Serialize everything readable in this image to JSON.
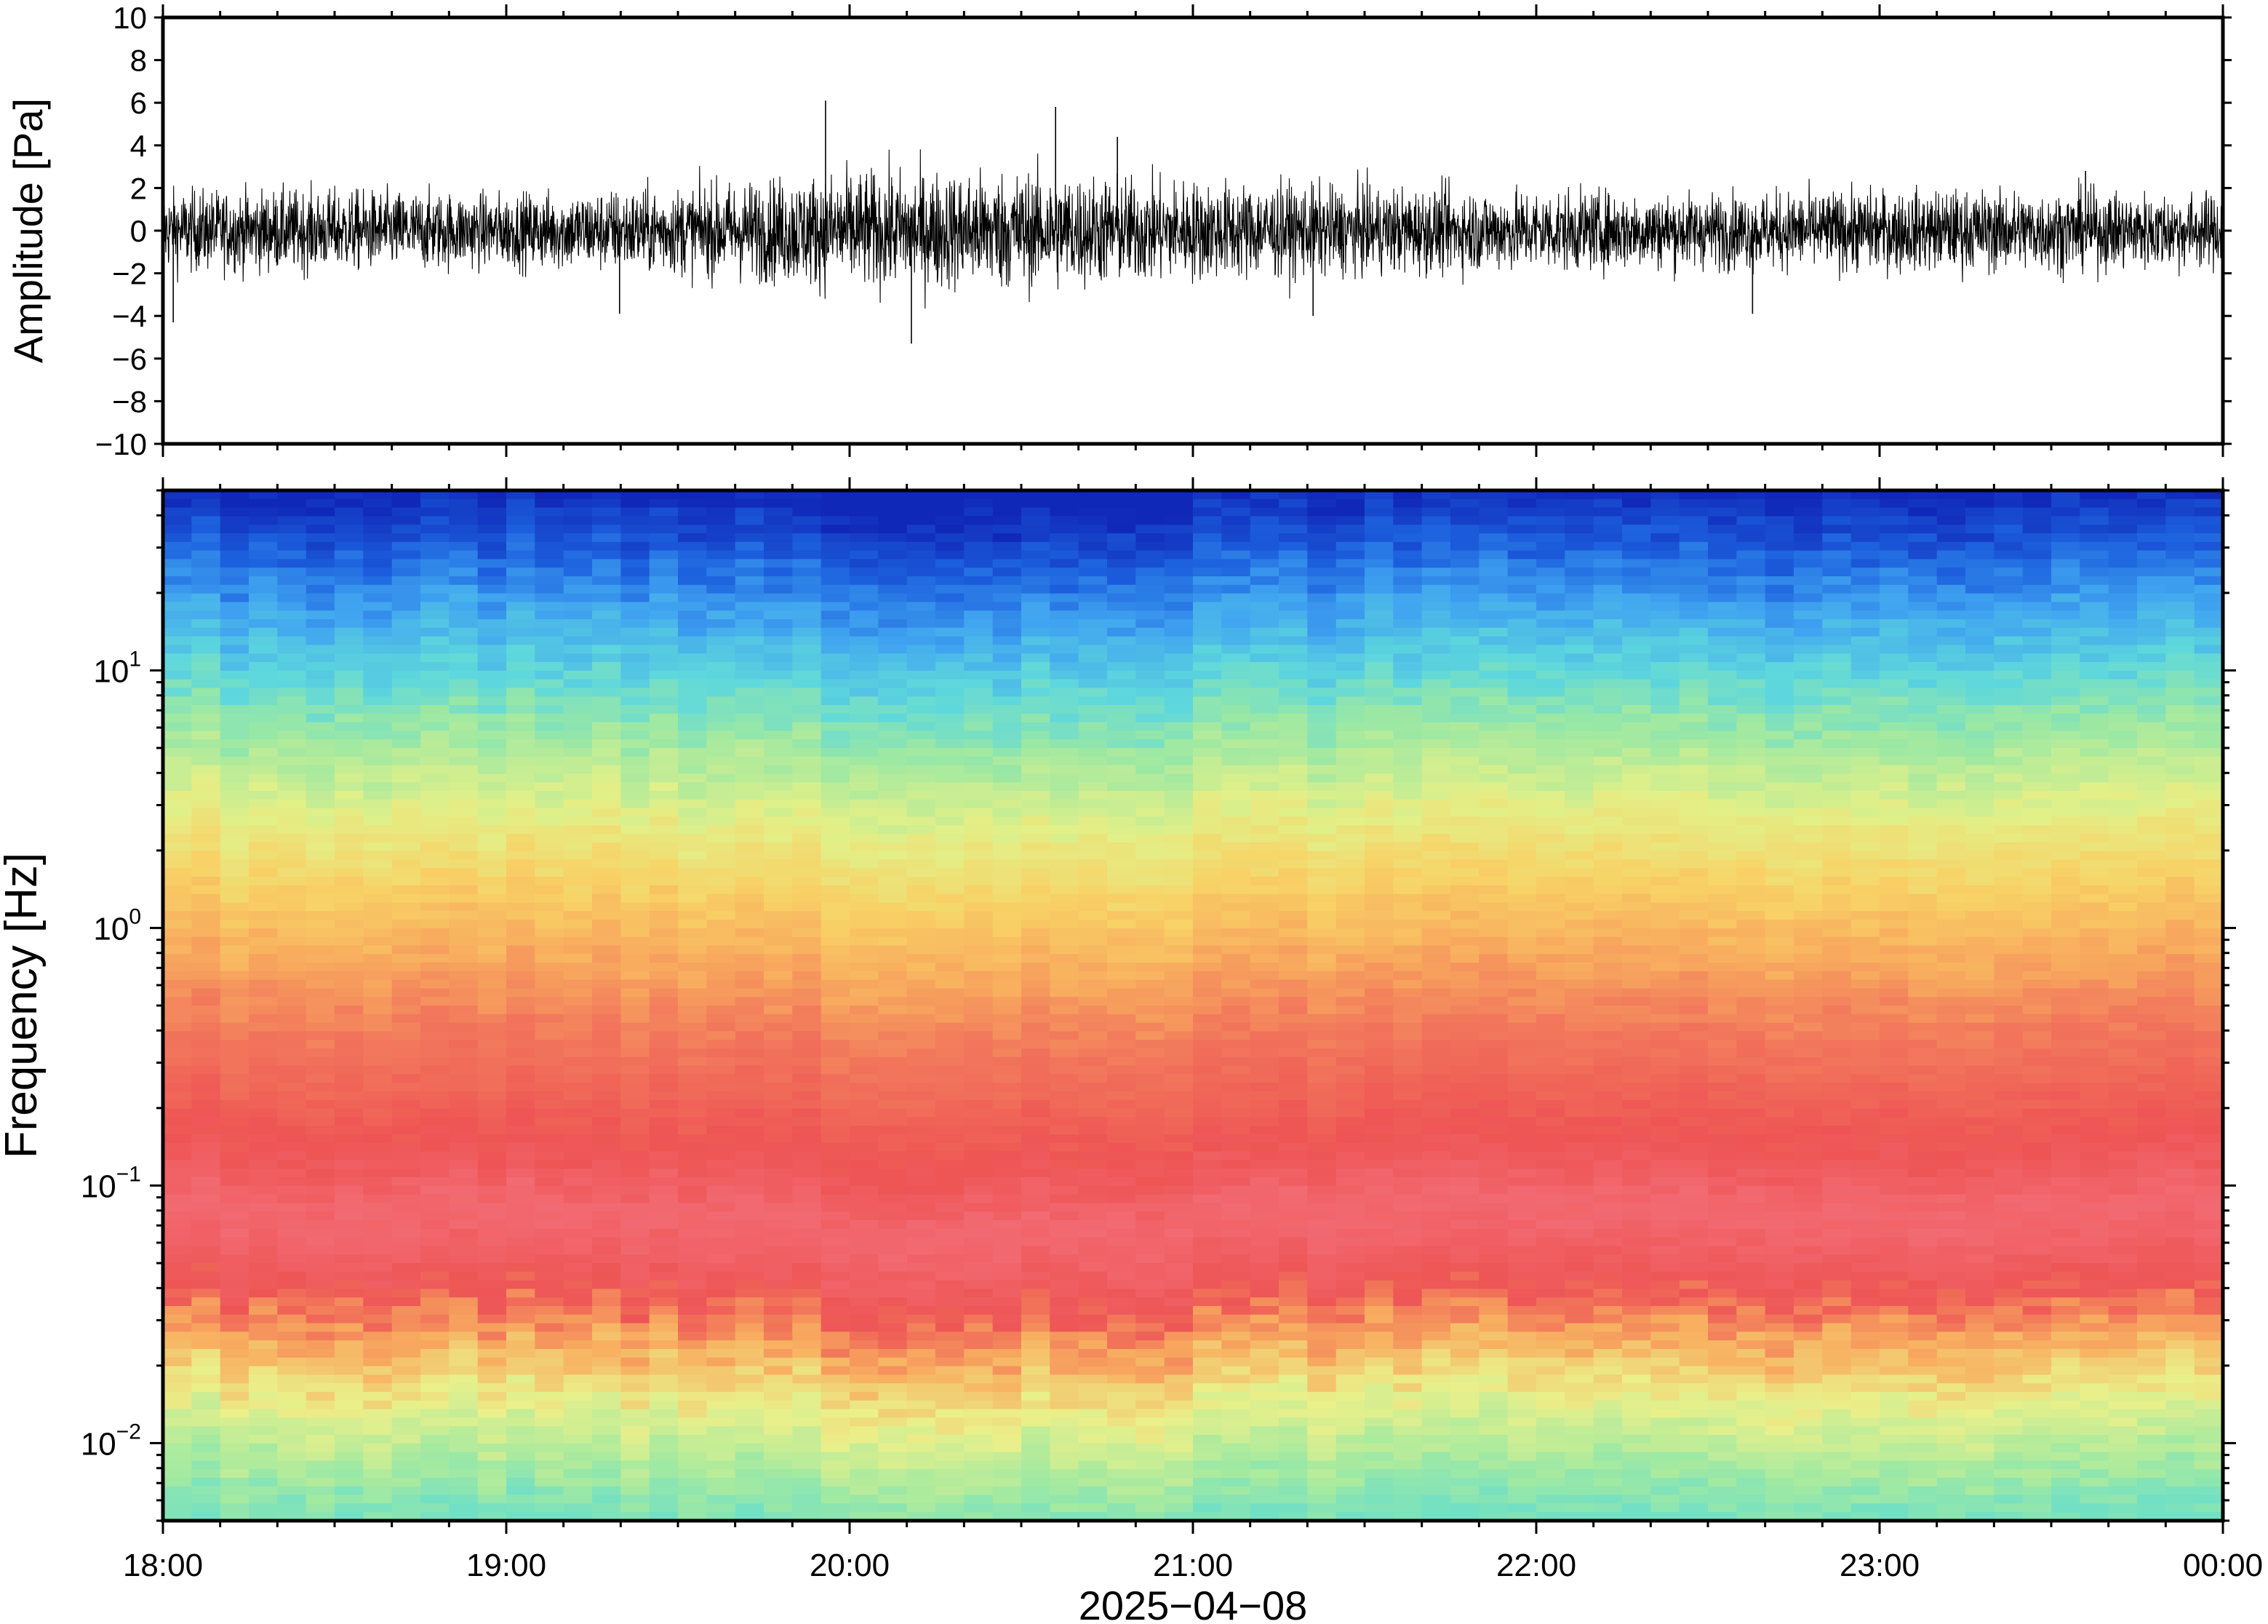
{
  "chart_data": [
    {
      "type": "line",
      "panel": "waveform",
      "title": "",
      "ylabel": "Amplitude [Pa]",
      "ylim": [
        -10,
        10
      ],
      "yticks": [
        "10",
        "8",
        "6",
        "4",
        "2",
        "0",
        "−2",
        "−4",
        "−6",
        "−8",
        "−10"
      ],
      "ytick_values": [
        10,
        8,
        6,
        4,
        2,
        0,
        -2,
        -4,
        -6,
        -8,
        -10
      ],
      "xlim": [
        "18:00",
        "00:00"
      ],
      "grid": false,
      "series": [
        {
          "color": "#000000",
          "envelope_hours": [
            18.0,
            18.5,
            19.0,
            19.5,
            20.0,
            20.5,
            21.0,
            21.5,
            22.0,
            22.5,
            23.0,
            23.5,
            24.0
          ],
          "envelope_typical_pa": [
            1.3,
            1.3,
            1.2,
            1.4,
            1.9,
            1.9,
            1.6,
            1.4,
            1.3,
            1.2,
            1.3,
            1.3,
            1.2
          ],
          "peaks": [
            {
              "hour": 18.03,
              "value": -4.3
            },
            {
              "hour": 19.33,
              "value": -3.9
            },
            {
              "hour": 19.93,
              "value": 6.1
            },
            {
              "hour": 20.18,
              "value": -5.3
            },
            {
              "hour": 20.6,
              "value": 5.8
            },
            {
              "hour": 20.78,
              "value": 4.4
            },
            {
              "hour": 21.35,
              "value": -4.0
            },
            {
              "hour": 22.63,
              "value": -3.9
            },
            {
              "hour": 23.6,
              "value": 2.8
            }
          ]
        }
      ]
    },
    {
      "type": "heatmap",
      "panel": "spectrogram",
      "title": "",
      "ylabel": "Frequency [Hz]",
      "yscale": "log",
      "ylim": [
        0.005,
        50
      ],
      "yticks": [
        {
          "value": 0.01,
          "base": "10",
          "exp": "−2"
        },
        {
          "value": 0.1,
          "base": "10",
          "exp": "−1"
        },
        {
          "value": 1,
          "base": "10",
          "exp": "0"
        },
        {
          "value": 10,
          "base": "10",
          "exp": "1"
        }
      ],
      "xlabel": "2025−04−08",
      "xticks": [
        "18:00",
        "19:00",
        "20:00",
        "21:00",
        "22:00",
        "23:00",
        "00:00"
      ],
      "xlim": [
        "18:00",
        "00:00"
      ],
      "colormap": "jet-like",
      "color_stops": [
        {
          "freq": 50,
          "color": "#1028b8"
        },
        {
          "freq": 30,
          "color": "#1c60de"
        },
        {
          "freq": 18,
          "color": "#40a4f0"
        },
        {
          "freq": 10,
          "color": "#5ed8dc"
        },
        {
          "freq": 6,
          "color": "#9ae8a4"
        },
        {
          "freq": 3,
          "color": "#e2f088"
        },
        {
          "freq": 1.5,
          "color": "#f8d266"
        },
        {
          "freq": 0.8,
          "color": "#f8ac5e"
        },
        {
          "freq": 0.4,
          "color": "#f2785c"
        },
        {
          "freq": 0.15,
          "color": "#ee5454"
        },
        {
          "freq": 0.08,
          "color": "#f26a72"
        },
        {
          "freq": 0.04,
          "color": "#ee5656"
        },
        {
          "freq": 0.025,
          "color": "#f8b060"
        },
        {
          "freq": 0.015,
          "color": "#eaf08a"
        },
        {
          "freq": 0.008,
          "color": "#a4eaa0"
        },
        {
          "freq": 0.005,
          "color": "#72e0c4"
        }
      ],
      "grid": false
    }
  ]
}
